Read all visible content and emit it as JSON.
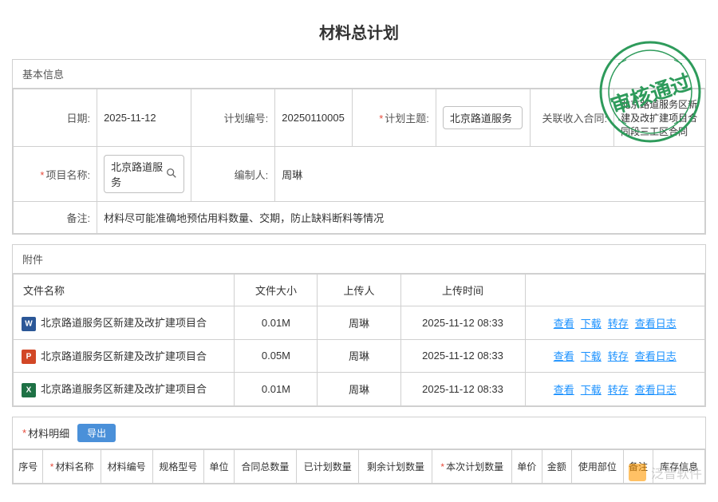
{
  "title": "材料总计划",
  "basic": {
    "header": "基本信息",
    "date_label": "日期:",
    "date_value": "2025-11-12",
    "plan_no_label": "计划编号:",
    "plan_no_value": "20250110005",
    "plan_topic_label": "计划主题:",
    "plan_topic_value": "北京路道服务",
    "contract_label": "关联收入合同:",
    "contract_value": "北京路道服务区新建及改扩建项目合同段三工区合同",
    "project_label": "项目名称:",
    "project_value": "北京路道服务",
    "author_label": "编制人:",
    "author_value": "周琳",
    "remark_label": "备注:",
    "remark_value": "材料尽可能准确地预估用料数量、交期，防止缺料断料等情况"
  },
  "attachments": {
    "header": "附件",
    "cols": {
      "name": "文件名称",
      "size": "文件大小",
      "uploader": "上传人",
      "time": "上传时间"
    },
    "actions": {
      "view": "查看",
      "download": "下载",
      "save": "转存",
      "log": "查看日志"
    },
    "rows": [
      {
        "icon": "word",
        "letter": "W",
        "name": "北京路道服务区新建及改扩建项目合",
        "size": "0.01M",
        "uploader": "周琳",
        "time": "2025-11-12 08:33"
      },
      {
        "icon": "ppt",
        "letter": "P",
        "name": "北京路道服务区新建及改扩建项目合",
        "size": "0.05M",
        "uploader": "周琳",
        "time": "2025-11-12 08:33"
      },
      {
        "icon": "excel",
        "letter": "X",
        "name": "北京路道服务区新建及改扩建项目合",
        "size": "0.01M",
        "uploader": "周琳",
        "time": "2025-11-12 08:33"
      }
    ]
  },
  "detail": {
    "header": "材料明细",
    "export": "导出",
    "cols": [
      "序号",
      "材料名称",
      "材料编号",
      "规格型号",
      "单位",
      "合同总数量",
      "已计划数量",
      "剩余计划数量",
      "本次计划数量",
      "单价",
      "金额",
      "使用部位",
      "备注",
      "库存信息"
    ],
    "required_cols": [
      1,
      8
    ]
  },
  "stamp_text": "审核通过",
  "watermark": "泛普软件"
}
